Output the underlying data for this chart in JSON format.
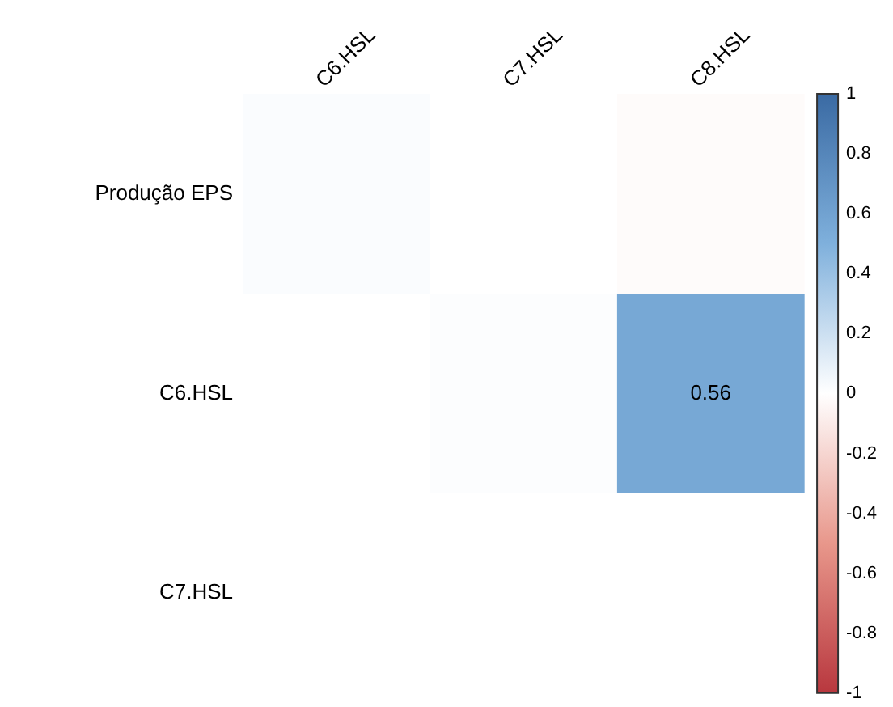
{
  "chart_data": {
    "type": "heatmap",
    "categories": [
      "C6.HSL",
      "C7.HSL",
      "C8.HSL"
    ],
    "y_categories": [
      "Produção EPS",
      "C6.HSL",
      "C7.HSL"
    ],
    "cells": [
      [
        0.02,
        0,
        -0.02
      ],
      [
        null,
        0.01,
        0.56
      ],
      [
        null,
        null,
        null
      ]
    ],
    "cell_labels": [
      [
        null,
        null,
        null
      ],
      [
        null,
        null,
        "0.56"
      ],
      [
        null,
        null,
        null
      ]
    ],
    "clim": [
      -1,
      1
    ],
    "cticks": [
      {
        "value": -1,
        "label": "-1"
      },
      {
        "value": -0.8,
        "label": "-0.8"
      },
      {
        "value": -0.6,
        "label": "-0.6"
      },
      {
        "value": -0.4,
        "label": "-0.4"
      },
      {
        "value": -0.2,
        "label": "-0.2"
      },
      {
        "value": 0,
        "label": "0"
      },
      {
        "value": 0.2,
        "label": "0.2"
      },
      {
        "value": 0.4,
        "label": "0.4"
      },
      {
        "value": 0.6,
        "label": "0.6"
      },
      {
        "value": 0.8,
        "label": "0.8"
      },
      {
        "value": 1,
        "label": "1"
      }
    ]
  }
}
